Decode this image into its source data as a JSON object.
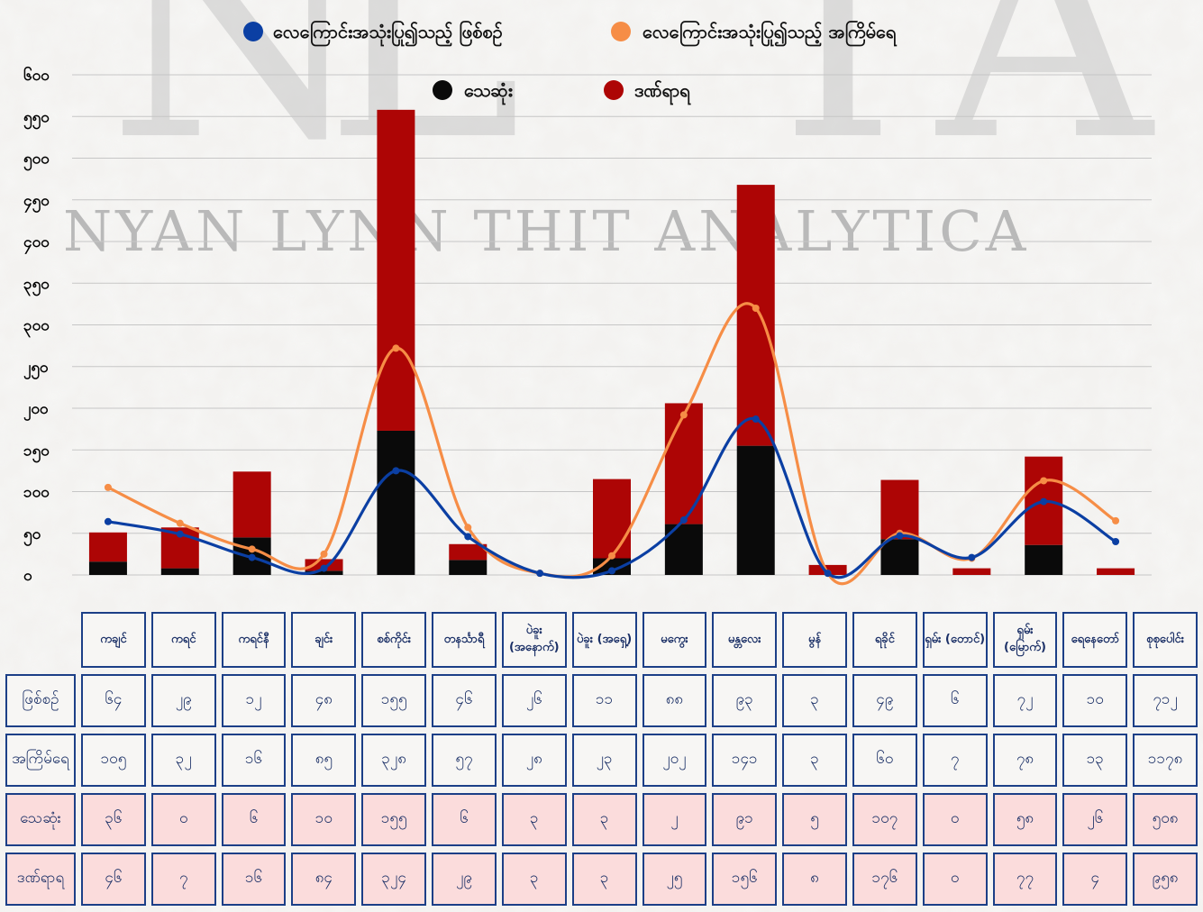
{
  "watermark": {
    "text": "NYAN LYNN THIT ANALYTICA",
    "big_letters": [
      "N",
      "L",
      "T",
      "A"
    ]
  },
  "colors": {
    "injured_line": "#0b3fa3",
    "killed_line": "#f68d46",
    "deaths_bar": "#0a0a0a",
    "injuries_bar": "#ad0505",
    "table_border": "#1c3f87",
    "table_pink": "#fbdcdc"
  },
  "chart_data": {
    "type": "bar",
    "ylim": [
      0,
      600
    ],
    "yticks": [
      0,
      50,
      100,
      150,
      200,
      250,
      300,
      350,
      400,
      450,
      500,
      550,
      600
    ],
    "ytick_labels": [
      "၀",
      "၅၀",
      "၁၀၀",
      "၁၅၀",
      "၂၀၀",
      "၂၅၀",
      "၃၀၀",
      "၃၅၀",
      "၄၀၀",
      "၄၅၀",
      "၅၀၀",
      "၅၅၀",
      "၆၀၀"
    ],
    "grid": true,
    "legend_position": "top-center",
    "categories": [
      "ကချင်",
      "ကရင်",
      "ကရင်နီ",
      "ချင်း",
      "စစ်ကိုင်း",
      "တနင်္သာရီ",
      "ပဲခူး (အနောက်)",
      "ပဲခူး (အရှေ့)",
      "မကွေး",
      "မန္တလေး",
      "မွန်",
      "ရခိုင်",
      "ရှမ်း (တောင်)",
      "ရှမ်း (မြောက်)",
      "ရေနေတော်"
    ],
    "series": [
      {
        "name": "လေကြောင်းအသုံးပြု၍သည့် ဖြစ်စဉ်",
        "kind": "line",
        "values": [
          64,
          49,
          21,
          8,
          125,
          46,
          2,
          5,
          66,
          187,
          2,
          47,
          21,
          88,
          40
        ]
      },
      {
        "name": "လေကြောင်းအသုံးပြု၍သည့် အကြိမ်ရေ",
        "kind": "line",
        "values": [
          105,
          62,
          31,
          25,
          272,
          57,
          2,
          23,
          192,
          320,
          2,
          50,
          20,
          113,
          65
        ]
      },
      {
        "name": "သေဆုံး",
        "kind": "bar",
        "values": [
          16,
          8,
          45,
          5,
          173,
          18,
          0,
          20,
          61,
          155,
          0,
          43,
          0,
          36,
          0
        ]
      },
      {
        "name": "ဒဏ်ရာရ",
        "kind": "bar",
        "values": [
          35,
          49,
          79,
          14,
          385,
          19,
          0,
          95,
          145,
          313,
          12,
          71,
          8,
          106,
          8
        ]
      }
    ]
  },
  "table": {
    "headers": [
      "ကချင်",
      "ကရင်",
      "ကရင်နီ",
      "ချင်း",
      "စစ်ကိုင်း",
      "တနင်္သာရီ",
      "ပဲခူး (အနောက်)",
      "ပဲခူး (အရှေ့)",
      "မကွေး",
      "မန္တလေး",
      "မွန်",
      "ရခိုင်",
      "ရှမ်း (တောင်)",
      "ရှမ်း (မြောက်)",
      "ရေနေတော်",
      "စုစုပေါင်း"
    ],
    "rows": [
      {
        "label": "ဖြစ်စဉ်",
        "values": [
          "၆၄",
          "၂၉",
          "၁၂",
          "၄၈",
          "၁၅၅",
          "၄၆",
          "၂၆",
          "၁၁",
          "၈၈",
          "၉၃",
          "၃",
          "၄၉",
          "၆",
          "၇၂",
          "၁၀",
          "၇၁၂"
        ]
      },
      {
        "label": "အကြိမ်ရေ",
        "values": [
          "၁၀၅",
          "၃၂",
          "၁၆",
          "၈၅",
          "၃၂၈",
          "၅၇",
          "၂၈",
          "၂၃",
          "၂၀၂",
          "၁၄၁",
          "၃",
          "၆၀",
          "၇",
          "၇၈",
          "၁၃",
          "၁၁၇၈"
        ]
      },
      {
        "label": "သေဆုံး",
        "values": [
          "၃၆",
          "၀",
          "၆",
          "၁၀",
          "၁၅၅",
          "၆",
          "၃",
          "၃",
          "၂",
          "၉၁",
          "၅",
          "၁၀၇",
          "၀",
          "၅၈",
          "၂၆",
          "၅၀၈"
        ]
      },
      {
        "label": "ဒဏ်ရာရ",
        "values": [
          "၄၆",
          "၇",
          "၁၆",
          "၈၄",
          "၃၂၄",
          "၂၉",
          "၃",
          "၃",
          "၂၅",
          "၁၅၆",
          "၈",
          "၁၇၆",
          "၀",
          "၇၇",
          "၄",
          "၉၅၈"
        ]
      }
    ]
  }
}
